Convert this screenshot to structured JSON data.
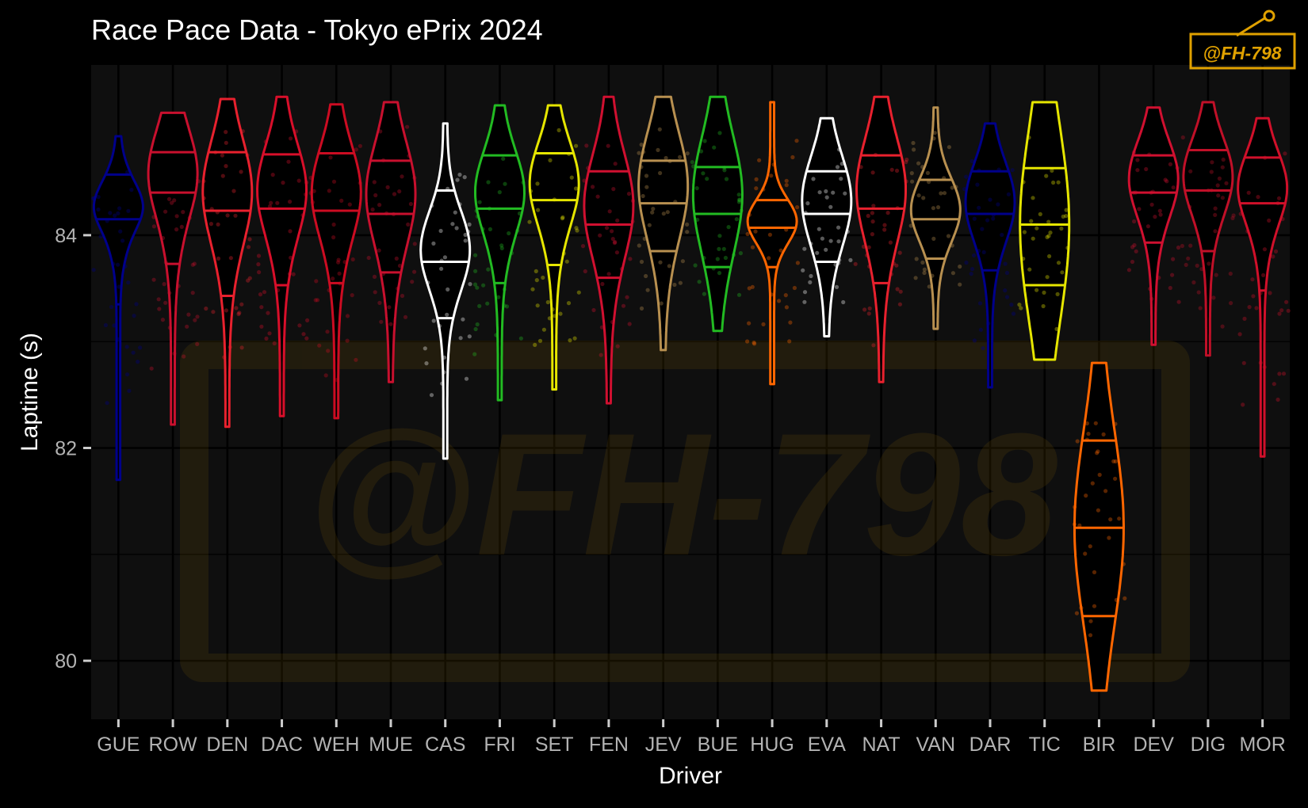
{
  "watermark": {
    "text": "@FH-798",
    "color": "#e0a100"
  },
  "colors": {
    "background": "#000000",
    "panel": "#0f0f0f",
    "grid_major": "#000000",
    "tick_label": "#b3b3b3",
    "text": "#ffffff"
  },
  "chart_data": {
    "type": "violin",
    "title": "Race Pace Data - Tokyo ePrix 2024",
    "xlabel": "Driver",
    "ylabel": "Laptime (s)",
    "ylim": [
      79.45,
      85.6
    ],
    "yticks": [
      80,
      82,
      84
    ],
    "grid": true,
    "quantiles_drawn": [
      0.25,
      0.5,
      0.75
    ],
    "series": [
      {
        "driver": "GUE",
        "color": "#00008b",
        "min": 81.7,
        "max": 84.93,
        "q1": 83.35,
        "median": 84.15,
        "q3": 84.57,
        "sigma": 0.3,
        "skew": 1.5
      },
      {
        "driver": "ROW",
        "color": "#c8102e",
        "min": 82.22,
        "max": 85.15,
        "q1": 83.73,
        "median": 84.4,
        "q3": 84.78,
        "sigma": 0.5,
        "skew": 1.2
      },
      {
        "driver": "DEN",
        "color": "#e8212e",
        "min": 82.2,
        "max": 85.28,
        "q1": 83.43,
        "median": 84.23,
        "q3": 84.78,
        "sigma": 0.55,
        "skew": 1.0
      },
      {
        "driver": "DAC",
        "color": "#d80f2a",
        "min": 82.3,
        "max": 85.3,
        "q1": 83.53,
        "median": 84.25,
        "q3": 84.76,
        "sigma": 0.5,
        "skew": 1.1
      },
      {
        "driver": "WEH",
        "color": "#cc0c22",
        "min": 82.28,
        "max": 85.23,
        "q1": 83.55,
        "median": 84.23,
        "q3": 84.77,
        "sigma": 0.5,
        "skew": 1.1
      },
      {
        "driver": "MUE",
        "color": "#c8102e",
        "min": 82.62,
        "max": 85.25,
        "q1": 83.65,
        "median": 84.2,
        "q3": 84.7,
        "sigma": 0.55,
        "skew": 1.1
      },
      {
        "driver": "CAS",
        "color": "#ffffff",
        "min": 81.9,
        "max": 85.05,
        "q1": 83.22,
        "median": 83.75,
        "q3": 84.42,
        "sigma": 0.4,
        "skew": 0.8
      },
      {
        "driver": "FRI",
        "color": "#22bb22",
        "min": 82.45,
        "max": 85.22,
        "q1": 83.55,
        "median": 84.25,
        "q3": 84.75,
        "sigma": 0.45,
        "skew": 1.1
      },
      {
        "driver": "SET",
        "color": "#e6e600",
        "min": 82.55,
        "max": 85.22,
        "q1": 83.72,
        "median": 84.33,
        "q3": 84.77,
        "sigma": 0.45,
        "skew": 1.1
      },
      {
        "driver": "FEN",
        "color": "#d01030",
        "min": 82.42,
        "max": 85.3,
        "q1": 83.6,
        "median": 84.1,
        "q3": 84.6,
        "sigma": 0.55,
        "skew": 1.0
      },
      {
        "driver": "JEV",
        "color": "#b89050",
        "min": 82.92,
        "max": 85.3,
        "q1": 83.85,
        "median": 84.3,
        "q3": 84.7,
        "sigma": 0.55,
        "skew": 0.9
      },
      {
        "driver": "BUE",
        "color": "#22bb22",
        "min": 83.1,
        "max": 85.3,
        "q1": 83.7,
        "median": 84.2,
        "q3": 84.64,
        "sigma": 0.6,
        "skew": 0.9
      },
      {
        "driver": "HUG",
        "color": "#ff6600",
        "min": 82.6,
        "max": 85.25,
        "q1": 83.7,
        "median": 84.07,
        "q3": 84.33,
        "sigma": 0.22,
        "skew": 0.8
      },
      {
        "driver": "EVA",
        "color": "#ffffff",
        "min": 83.05,
        "max": 85.1,
        "q1": 83.75,
        "median": 84.2,
        "q3": 84.6,
        "sigma": 0.45,
        "skew": 0.8
      },
      {
        "driver": "NAT",
        "color": "#e8212e",
        "min": 82.62,
        "max": 85.3,
        "q1": 83.55,
        "median": 84.25,
        "q3": 84.75,
        "sigma": 0.55,
        "skew": 1.0
      },
      {
        "driver": "VAN",
        "color": "#b89050",
        "min": 83.12,
        "max": 85.2,
        "q1": 83.78,
        "median": 84.15,
        "q3": 84.52,
        "sigma": 0.32,
        "skew": 0.8
      },
      {
        "driver": "DAR",
        "color": "#00008b",
        "min": 82.57,
        "max": 85.05,
        "q1": 83.67,
        "median": 84.2,
        "q3": 84.6,
        "sigma": 0.4,
        "skew": 0.8
      },
      {
        "driver": "TIC",
        "color": "#e6e600",
        "min": 82.83,
        "max": 85.25,
        "q1": 83.53,
        "median": 84.1,
        "q3": 84.63,
        "sigma": 0.9,
        "skew": 0.0
      },
      {
        "driver": "BIR",
        "color": "#ff6600",
        "min": 79.72,
        "max": 82.8,
        "q1": 80.42,
        "median": 81.25,
        "q3": 82.07,
        "sigma": 0.9,
        "skew": 0.0
      },
      {
        "driver": "DEV",
        "color": "#d01030",
        "min": 82.97,
        "max": 85.2,
        "q1": 83.93,
        "median": 84.4,
        "q3": 84.75,
        "sigma": 0.4,
        "skew": 1.0
      },
      {
        "driver": "DIG",
        "color": "#c01028",
        "min": 82.87,
        "max": 85.25,
        "q1": 83.85,
        "median": 84.42,
        "q3": 84.8,
        "sigma": 0.4,
        "skew": 1.0
      },
      {
        "driver": "MOR",
        "color": "#d0102a",
        "min": 81.92,
        "max": 85.1,
        "q1": 83.48,
        "median": 84.3,
        "q3": 84.73,
        "sigma": 0.4,
        "skew": 1.2
      }
    ]
  }
}
